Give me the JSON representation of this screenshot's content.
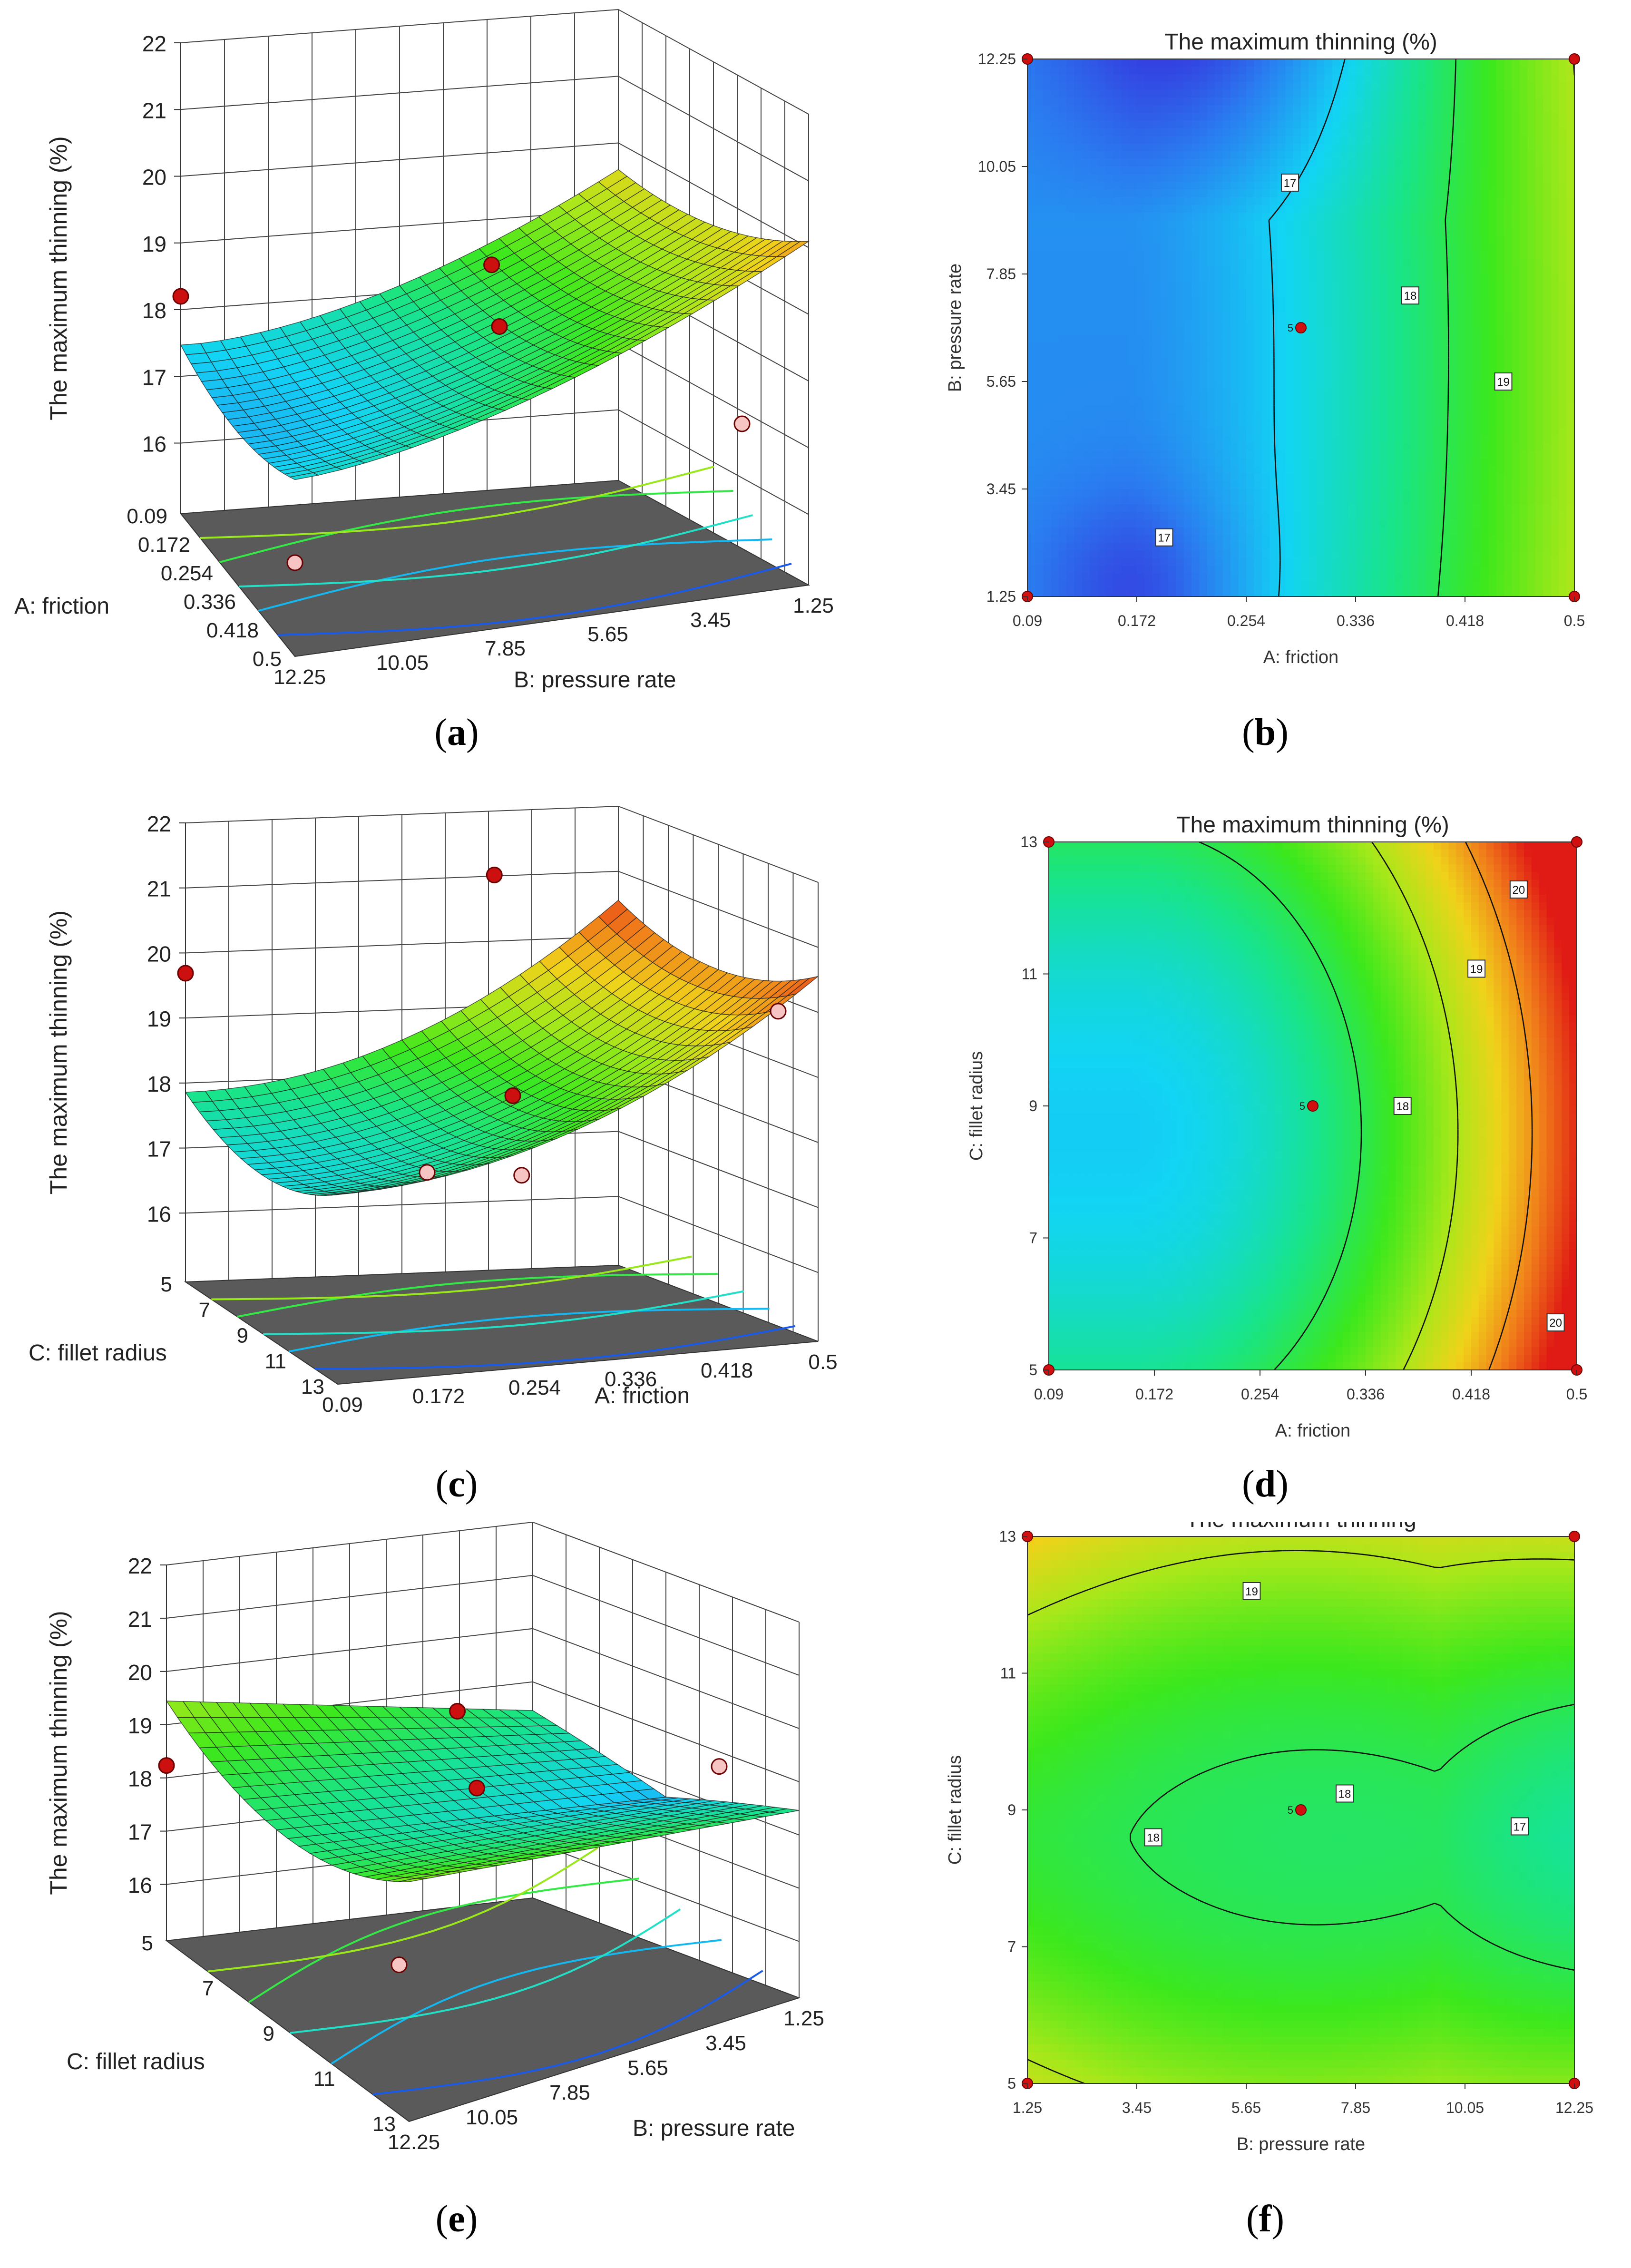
{
  "chart_data": [
    {
      "id": "a",
      "type": "surface3d",
      "caption_letter": "a",
      "zlabel": "The maximum thinning (%)",
      "z_ticks": [
        "16",
        "17",
        "18",
        "19",
        "20",
        "21",
        "22"
      ],
      "xlabel": "A: friction",
      "x_ticks": [
        "0.09",
        "0.172",
        "0.254",
        "0.336",
        "0.418",
        "0.5"
      ],
      "ylabel": "B: pressure rate",
      "y_ticks": [
        "12.25",
        "10.05",
        "7.85",
        "5.65",
        "3.45",
        "1.25"
      ],
      "zlim": [
        16,
        22
      ],
      "colormap": [
        "#3a17d6",
        "#2a7cf0",
        "#12d4f4",
        "#18e48a",
        "#3ce81c",
        "#a6e81a",
        "#f0d21a",
        "#f07a1a",
        "#e01a14"
      ],
      "color_range": [
        15.8,
        20.8
      ],
      "design_points_above": 3,
      "design_points_below": 2
    },
    {
      "id": "b",
      "type": "contour",
      "caption_letter": "b",
      "title": "The maximum thinning (%)",
      "xlabel": "A: friction",
      "x_ticks": [
        "0.09",
        "0.172",
        "0.254",
        "0.336",
        "0.418",
        "0.5"
      ],
      "ylabel": "B: pressure rate",
      "y_ticks": [
        "1.25",
        "3.45",
        "5.65",
        "7.85",
        "10.05",
        "12.25"
      ],
      "xlim": [
        0.09,
        0.5
      ],
      "ylim": [
        1.25,
        12.25
      ],
      "contour_levels": [
        17,
        18,
        19
      ],
      "contour_labels": [
        "17",
        "17",
        "18",
        "19"
      ],
      "center_point": {
        "x": 0.295,
        "y": 6.75,
        "label": "5"
      },
      "color_range": [
        15.8,
        20.8
      ]
    },
    {
      "id": "c",
      "type": "surface3d",
      "caption_letter": "c",
      "zlabel": "The maximum thinning (%)",
      "z_ticks": [
        "16",
        "17",
        "18",
        "19",
        "20",
        "21",
        "22"
      ],
      "xlabel": "C: fillet radius",
      "x_ticks": [
        "5",
        "7",
        "9",
        "11",
        "13"
      ],
      "ylabel": "A: friction",
      "y_ticks": [
        "0.09",
        "0.172",
        "0.254",
        "0.336",
        "0.418",
        "0.5"
      ],
      "zlim": [
        16,
        22
      ],
      "color_range": [
        15.8,
        20.8
      ],
      "design_points_above": 3,
      "design_points_below": 3
    },
    {
      "id": "d",
      "type": "contour",
      "caption_letter": "d",
      "title": "The maximum thinning (%)",
      "xlabel": "A: friction",
      "x_ticks": [
        "0.09",
        "0.172",
        "0.254",
        "0.336",
        "0.418",
        "0.5"
      ],
      "ylabel": "C: fillet radius",
      "y_ticks": [
        "5",
        "7",
        "9",
        "11",
        "13"
      ],
      "xlim": [
        0.09,
        0.5
      ],
      "ylim": [
        5,
        13
      ],
      "contour_levels": [
        18,
        19,
        20
      ],
      "contour_labels": [
        "18",
        "19",
        "20",
        "20"
      ],
      "center_point": {
        "x": 0.295,
        "y": 9,
        "label": "5"
      },
      "color_range": [
        15.8,
        20.8
      ]
    },
    {
      "id": "e",
      "type": "surface3d",
      "caption_letter": "e",
      "zlabel": "The maximum thinning (%)",
      "z_ticks": [
        "16",
        "17",
        "18",
        "19",
        "20",
        "21",
        "22"
      ],
      "xlabel": "C: fillet radius",
      "x_ticks": [
        "5",
        "7",
        "9",
        "11",
        "13"
      ],
      "ylabel": "B: pressure rate",
      "y_ticks": [
        "12.25",
        "10.05",
        "7.85",
        "5.65",
        "3.45",
        "1.25"
      ],
      "zlim": [
        16,
        22
      ],
      "color_range": [
        15.8,
        20.8
      ],
      "design_points_above": 3,
      "design_points_below": 2
    },
    {
      "id": "f",
      "type": "contour",
      "caption_letter": "f",
      "title": "The maximum thinning",
      "xlabel": "B: pressure rate",
      "x_ticks": [
        "1.25",
        "3.45",
        "5.65",
        "7.85",
        "10.05",
        "12.25"
      ],
      "ylabel": "C: fillet radius",
      "y_ticks": [
        "5",
        "7",
        "9",
        "11",
        "13"
      ],
      "xlim": [
        1.25,
        12.25
      ],
      "ylim": [
        5,
        13
      ],
      "contour_levels": [
        17,
        18,
        19
      ],
      "contour_labels": [
        "19",
        "18",
        "18",
        "17"
      ],
      "center_point": {
        "x": 6.75,
        "y": 9,
        "label": "5"
      },
      "color_range": [
        15.8,
        20.8
      ]
    }
  ]
}
